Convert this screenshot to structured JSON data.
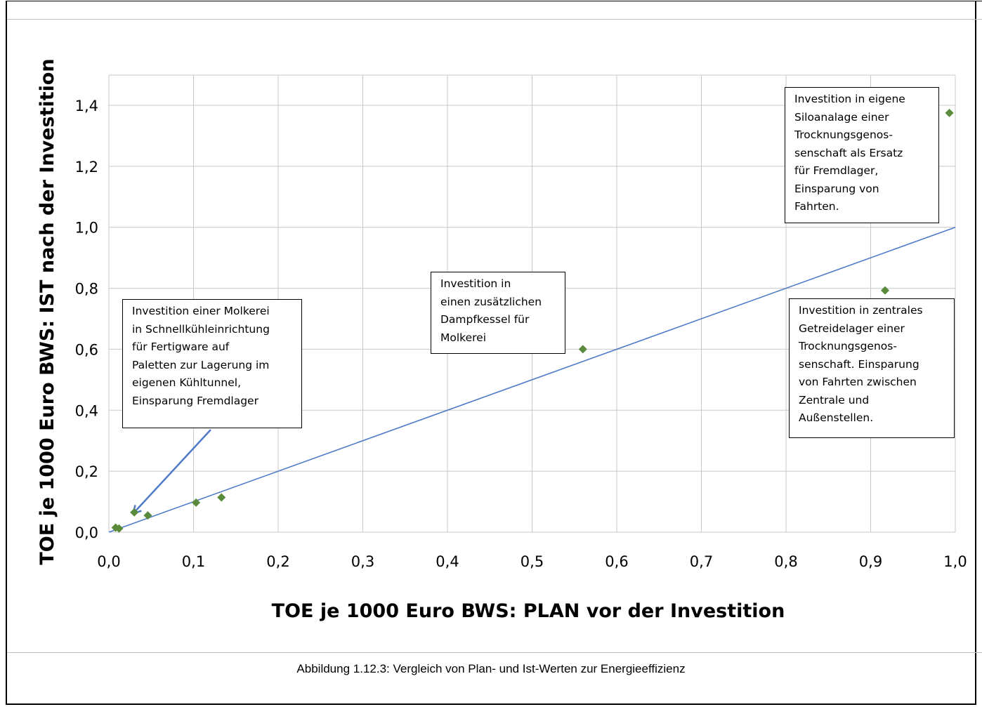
{
  "chart_data": {
    "type": "scatter",
    "xlabel": "TOE je 1000 Euro BWS: PLAN vor der Investition",
    "ylabel": "TOE je 1000 Euro BWS: IST nach der Investition",
    "xlim": [
      0,
      1.0
    ],
    "ylim": [
      0,
      1.4
    ],
    "x_ticks": [
      "0,0",
      "0,1",
      "0,2",
      "0,3",
      "0,4",
      "0,5",
      "0,6",
      "0,7",
      "0,8",
      "0,9",
      "1,0"
    ],
    "y_ticks": [
      "0,0",
      "0,2",
      "0,4",
      "0,6",
      "0,8",
      "1,0",
      "1,2",
      "1,4"
    ],
    "grid": true,
    "marker_color": "#5a8a3c",
    "trendline_color": "#4f7ac8",
    "points": [
      {
        "x": 0.008,
        "y": 0.015
      },
      {
        "x": 0.012,
        "y": 0.012
      },
      {
        "x": 0.03,
        "y": 0.065
      },
      {
        "x": 0.046,
        "y": 0.055
      },
      {
        "x": 0.103,
        "y": 0.097
      },
      {
        "x": 0.133,
        "y": 0.114
      },
      {
        "x": 0.56,
        "y": 0.6
      },
      {
        "x": 0.917,
        "y": 0.793
      },
      {
        "x": 0.993,
        "y": 1.375
      }
    ],
    "trendline": {
      "x": [
        0.0,
        1.0
      ],
      "y": [
        0.0,
        1.0
      ]
    },
    "annotations": [
      {
        "text": "Investition einer Molkerei\nin Schnellkühleinrichtung\nfür Fertigware auf\nPaletten zur Lagerung im\neigenen Kühltunnel,\nEinsparung Fremdlager"
      },
      {
        "text": "Investition in\neinen zusätzlichen\nDampfkessel für\nMolkerei"
      },
      {
        "text": "Investition in eigene\nSiloanalage einer\nTrocknungsgenos-\nsenschaft als Ersatz\nfür Fremdlager,\nEinsparung von\nFahrten."
      },
      {
        "text": "Investition in zentrales\nGetreidelager einer\nTrocknungsgenos-\nsenschaft. Einsparung\nvon Fahrten zwischen\nZentrale und\nAußenstellen."
      }
    ]
  },
  "caption": "Abbildung 1.12.3: Vergleich von Plan- und Ist-Werten zur Energieeffizienz"
}
